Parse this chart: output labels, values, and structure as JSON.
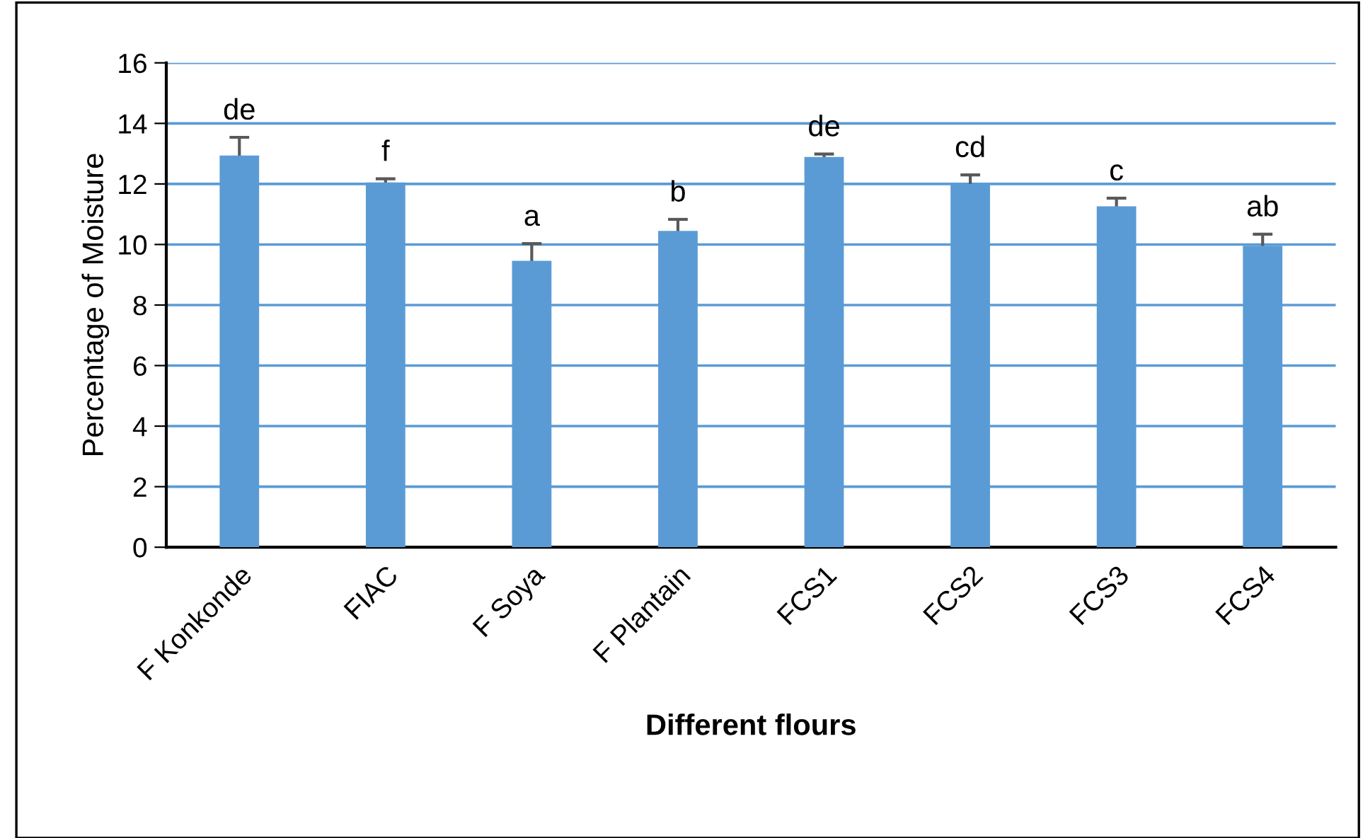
{
  "chart_data": {
    "type": "bar",
    "xlabel": "Different flours",
    "ylabel": "Percentage of Moisture",
    "categories": [
      "F Konkonde",
      "FIAC",
      "F Soya",
      "F Plantain",
      "FCS1",
      "FCS2",
      "FCS3",
      "FCS4"
    ],
    "values": [
      12.94,
      12.05,
      9.46,
      10.45,
      12.89,
      12.0,
      11.26,
      9.96
    ],
    "errors": [
      0.6,
      0.12,
      0.57,
      0.38,
      0.1,
      0.3,
      0.27,
      0.38
    ],
    "color": "#5b9bd5",
    "ylim": [
      0,
      16
    ],
    "yticks": [
      0,
      2,
      4,
      6,
      8,
      10,
      12,
      14,
      16
    ],
    "grid": "y",
    "annotations": [
      {
        "text": "de",
        "x": "F Konkonde",
        "y": 13.54
      },
      {
        "text": "f",
        "x": "FIAC",
        "y": 12.17
      },
      {
        "text": "a",
        "x": "F Soya",
        "y": 10.03
      },
      {
        "text": "b",
        "x": "F Plantain",
        "y": 10.83
      },
      {
        "text": "de",
        "x": "FCS1",
        "y": 12.99
      },
      {
        "text": "cd",
        "x": "FCS2",
        "y": 12.3
      },
      {
        "text": "c",
        "x": "FCS3",
        "y": 11.53
      },
      {
        "text": "ab",
        "x": "FCS4",
        "y": 10.34
      }
    ]
  }
}
